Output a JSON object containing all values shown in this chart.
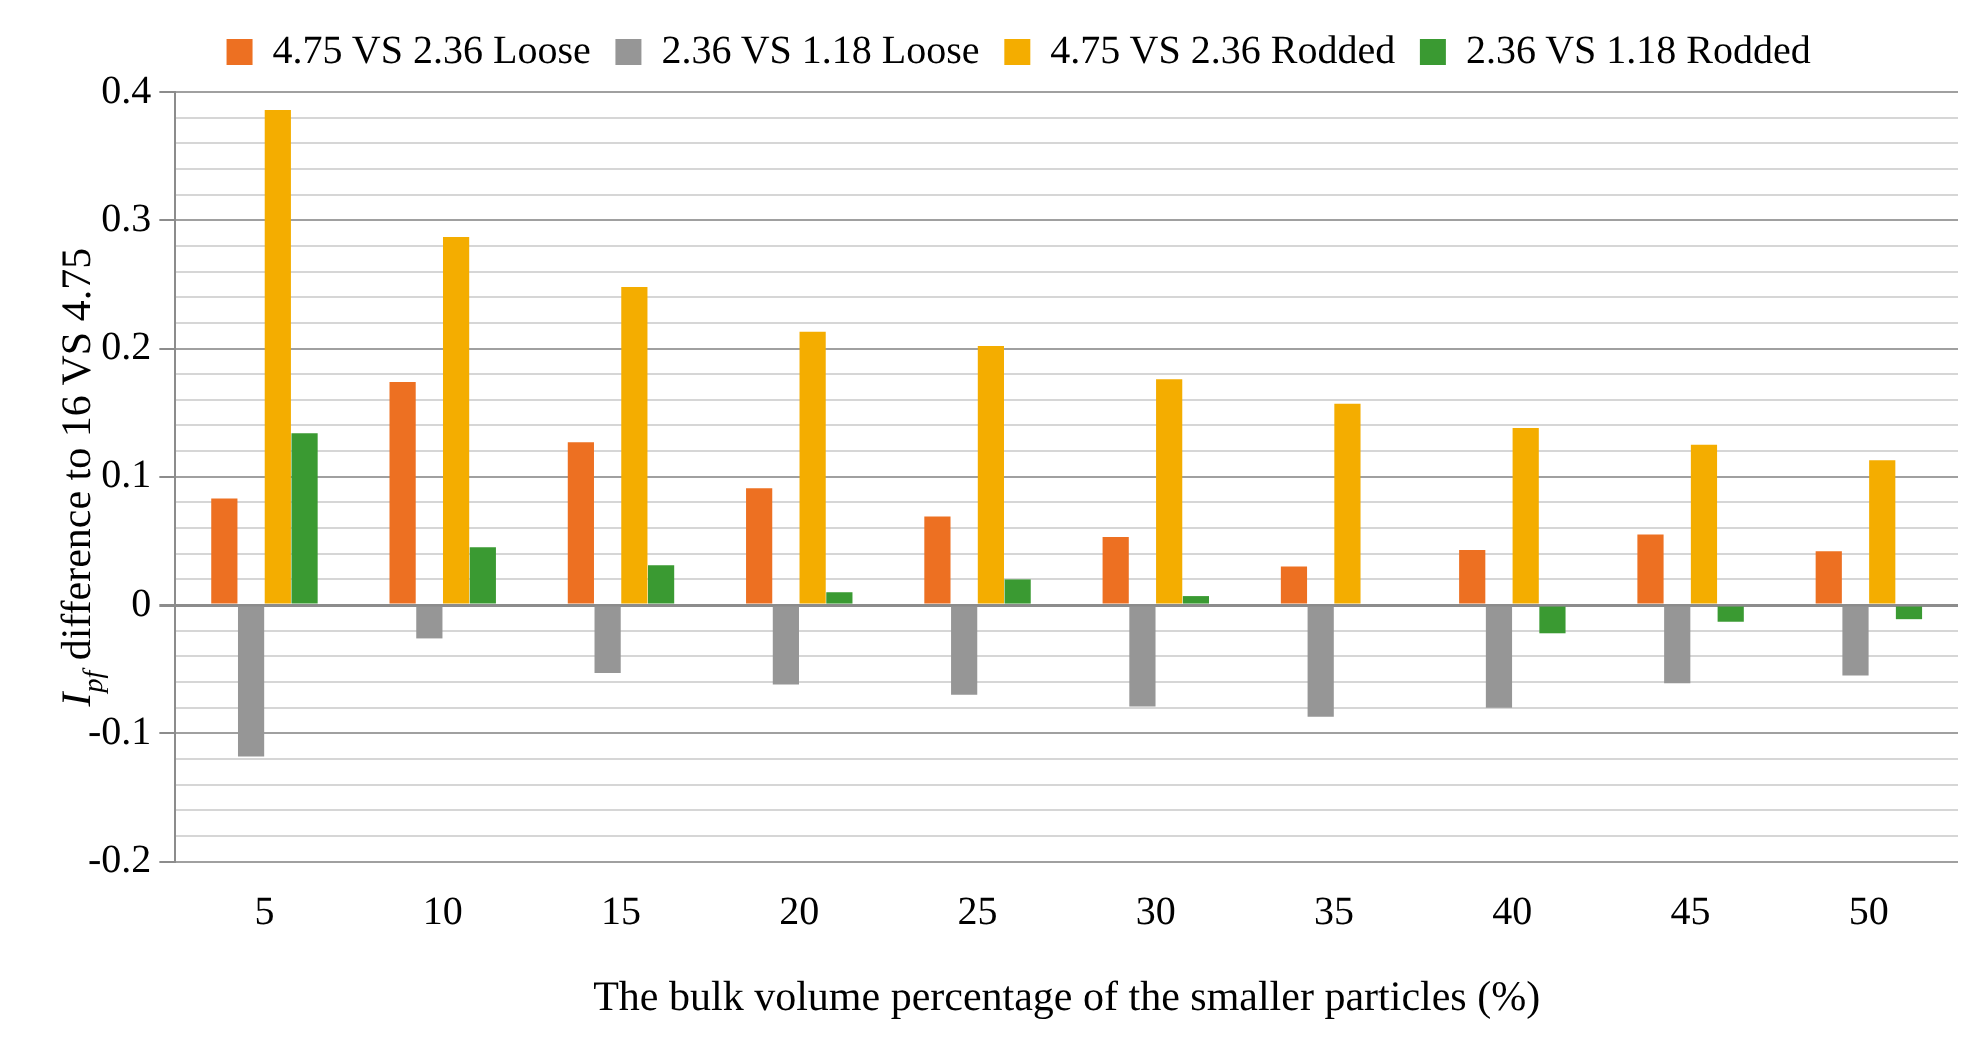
{
  "chart_data": {
    "type": "bar",
    "ylabel": "I$_{pf}$ difference to 16 VS 4.75",
    "xlabel": "The bulk volume percentage of the smaller particles (%)",
    "categories": [
      "5",
      "10",
      "15",
      "20",
      "25",
      "30",
      "35",
      "40",
      "45",
      "50"
    ],
    "series": [
      {
        "name": "4.75 VS 2.36 Loose",
        "color": "#ed7022",
        "values": [
          0.083,
          0.174,
          0.127,
          0.091,
          0.069,
          0.053,
          0.03,
          0.043,
          0.055,
          0.042
        ]
      },
      {
        "name": "2.36 VS 1.18 Loose",
        "color": "#969696",
        "values": [
          -0.118,
          -0.026,
          -0.053,
          -0.062,
          -0.07,
          -0.079,
          -0.087,
          -0.08,
          -0.061,
          -0.055
        ]
      },
      {
        "name": "4.75 VS 2.36 Rodded",
        "color": "#f4ad00",
        "values": [
          0.386,
          0.287,
          0.248,
          0.213,
          0.202,
          0.176,
          0.157,
          0.138,
          0.125,
          0.113
        ]
      },
      {
        "name": "2.36 VS 1.18 Rodded",
        "color": "#3a9a32",
        "values": [
          0.134,
          0.045,
          0.031,
          0.01,
          0.02,
          0.007,
          0,
          -0.022,
          -0.013,
          -0.011
        ]
      }
    ],
    "ylim": [
      -0.2,
      0.4
    ],
    "yticks": [
      "-0.2",
      {
        "value": -0.18,
        "label": null
      },
      {
        "value": -0.16,
        "label": null
      },
      {
        "value": -0.14,
        "label": null
      },
      {
        "value": -0.12,
        "label": null
      },
      "-0.1",
      {
        "value": -0.08,
        "label": null
      },
      {
        "value": -0.06,
        "label": null
      },
      {
        "value": -0.04,
        "label": null
      },
      {
        "value": -0.02,
        "label": null
      },
      0,
      {
        "value": 0.02,
        "label": null
      },
      {
        "value": 0.04,
        "label": null
      },
      {
        "value": 0.06,
        "label": null
      },
      {
        "value": 0.08,
        "label": null
      },
      0.1,
      {
        "value": 0.12,
        "label": null
      },
      {
        "value": 0.14,
        "label": null
      },
      {
        "value": 0.16,
        "label": null
      },
      {
        "value": 0.18,
        "label": null
      },
      0.2,
      {
        "value": 0.22,
        "label": null
      },
      {
        "value": 0.24,
        "label": null
      },
      {
        "value": 0.26,
        "label": null
      },
      {
        "value": 0.28,
        "label": null
      },
      0.3,
      {
        "value": 0.32,
        "label": null
      },
      {
        "value": 0.34,
        "label": null
      },
      {
        "value": 0.36,
        "label": null
      },
      {
        "value": 0.38,
        "label": null
      },
      0.4
    ],
    "grid": "y",
    "legend": "top"
  }
}
